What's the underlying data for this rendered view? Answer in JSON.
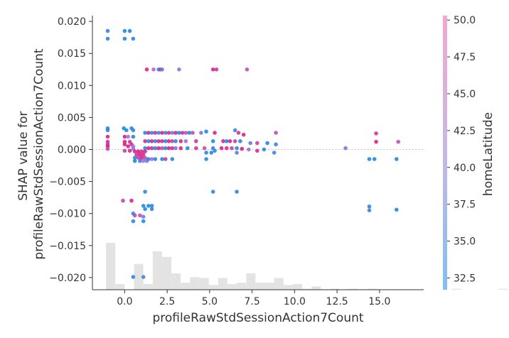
{
  "chart_data": {
    "type": "scatter",
    "xlabel": "profileRawStdSessionAction7Count",
    "ylabel_lines": [
      "SHAP value for",
      "profileRawStdSessionAction7Count"
    ],
    "xlim": [
      -1.9,
      17.6
    ],
    "ylim": [
      -0.0219,
      0.0209
    ],
    "x_ticks": [
      0.0,
      2.5,
      5.0,
      7.5,
      10.0,
      12.5,
      15.0
    ],
    "x_tick_labels": [
      "0.0",
      "2.5",
      "5.0",
      "7.5",
      "10.0",
      "12.5",
      "15.0"
    ],
    "y_ticks": [
      -0.02,
      -0.015,
      -0.01,
      -0.005,
      0.0,
      0.005,
      0.01,
      0.015,
      0.02
    ],
    "y_tick_labels": [
      "−0.020",
      "−0.015",
      "−0.010",
      "−0.005",
      "0.000",
      "0.005",
      "0.010",
      "0.015",
      "0.020"
    ],
    "zero_line": 0.0,
    "colorbar": {
      "label": "homeLatitude",
      "range": [
        31.7,
        50.3
      ],
      "ticks": [
        32.5,
        35.0,
        37.5,
        40.0,
        42.5,
        45.0,
        47.5,
        50.0
      ],
      "tick_labels": [
        "32.5",
        "35.0",
        "37.5",
        "40.0",
        "42.5",
        "45.0",
        "47.5",
        "50.0"
      ],
      "colors": [
        "#7fbff5",
        "#c5b8e8",
        "#f5a6cc"
      ]
    },
    "histogram": {
      "bin_start": -1.1,
      "bin_width": 0.55,
      "counts": [
        1.0,
        0.12,
        0.0,
        0.55,
        0.12,
        0.82,
        0.7,
        0.35,
        0.15,
        0.27,
        0.25,
        0.1,
        0.25,
        0.12,
        0.15,
        0.35,
        0.15,
        0.15,
        0.25,
        0.1,
        0.12,
        0.02,
        0.07,
        0.0,
        0.02,
        0.0,
        0.02,
        0.0,
        0.02,
        0.0,
        0.0,
        0.0,
        0.0,
        0.0,
        0.0,
        0.0,
        0.0,
        0.02,
        0.0,
        0.0,
        0.0,
        0.0,
        0.02,
        0.0,
        0.0,
        0.0,
        0.02,
        0.0,
        0.0,
        0.07,
        0.12,
        0.0,
        0.0,
        0.0,
        0.0,
        0.0,
        0.0,
        0.0,
        0.25,
        0.0
      ]
    },
    "points": [
      {
        "x": -1.0,
        "y": 0.0173,
        "v": 32.0
      },
      {
        "x": -1.0,
        "y": 0.0185,
        "v": 33.5
      },
      {
        "x": 0.0,
        "y": 0.0185,
        "v": 32.0
      },
      {
        "x": 0.3,
        "y": 0.0185,
        "v": 32.0
      },
      {
        "x": 0.5,
        "y": 0.0173,
        "v": 32.0
      },
      {
        "x": 0.0,
        "y": 0.0173,
        "v": 32.0
      },
      {
        "x": -1.0,
        "y": 0.0033,
        "v": 32.0
      },
      {
        "x": -1.0,
        "y": 0.003,
        "v": 33.0
      },
      {
        "x": -1.0,
        "y": 0.002,
        "v": 49.0
      },
      {
        "x": -1.0,
        "y": 0.0012,
        "v": 48.0
      },
      {
        "x": -1.0,
        "y": 0.0008,
        "v": 47.0
      },
      {
        "x": -1.0,
        "y": 0.0005,
        "v": 49.0
      },
      {
        "x": -1.0,
        "y": 0.0001,
        "v": 45.0
      },
      {
        "x": -0.05,
        "y": 0.0033,
        "v": 32.0
      },
      {
        "x": 0.1,
        "y": 0.003,
        "v": 32.0
      },
      {
        "x": 0.4,
        "y": 0.0033,
        "v": 32.0
      },
      {
        "x": 0.5,
        "y": 0.003,
        "v": 33.0
      },
      {
        "x": 0.0,
        "y": 0.002,
        "v": 49.0
      },
      {
        "x": 0.2,
        "y": 0.002,
        "v": 41.0
      },
      {
        "x": 0.5,
        "y": 0.002,
        "v": 32.0
      },
      {
        "x": 0.0,
        "y": 0.0012,
        "v": 49.0
      },
      {
        "x": 0.3,
        "y": 0.0012,
        "v": 47.0
      },
      {
        "x": 0.0,
        "y": 0.0008,
        "v": 49.0
      },
      {
        "x": 0.2,
        "y": 0.0005,
        "v": 49.0
      },
      {
        "x": 0.4,
        "y": 0.0008,
        "v": 48.0
      },
      {
        "x": 0.5,
        "y": 0.0005,
        "v": 40.0
      },
      {
        "x": 0.0,
        "y": -0.0002,
        "v": 46.0
      },
      {
        "x": 0.3,
        "y": -0.0002,
        "v": 48.0
      },
      {
        "x": 0.5,
        "y": 0.0001,
        "v": 39.0
      },
      {
        "x": 0.6,
        "y": -0.0003,
        "v": 49.0
      },
      {
        "x": 0.8,
        "y": -0.0003,
        "v": 49.0
      },
      {
        "x": 1.0,
        "y": -0.0003,
        "v": 48.0
      },
      {
        "x": 1.2,
        "y": -0.0003,
        "v": 49.0
      },
      {
        "x": 0.7,
        "y": -0.0008,
        "v": 47.0
      },
      {
        "x": 0.9,
        "y": -0.0008,
        "v": 49.0
      },
      {
        "x": 1.1,
        "y": -0.0008,
        "v": 48.0
      },
      {
        "x": 0.6,
        "y": -0.0013,
        "v": 32.0
      },
      {
        "x": 0.8,
        "y": -0.0013,
        "v": 46.0
      },
      {
        "x": 1.0,
        "y": -0.0013,
        "v": 49.0
      },
      {
        "x": 1.2,
        "y": -0.0013,
        "v": 45.0
      },
      {
        "x": 0.6,
        "y": -0.0018,
        "v": 32.0
      },
      {
        "x": 0.9,
        "y": -0.0018,
        "v": 32.0
      },
      {
        "x": 1.1,
        "y": -0.0018,
        "v": 41.0
      },
      {
        "x": 1.3,
        "y": -0.0018,
        "v": 38.0
      },
      {
        "x": 1.3,
        "y": 0.0125,
        "v": 49.0
      },
      {
        "x": 1.7,
        "y": 0.0125,
        "v": 42.0
      },
      {
        "x": 2.0,
        "y": 0.0125,
        "v": 32.0
      },
      {
        "x": 2.1,
        "y": 0.0125,
        "v": 47.0
      },
      {
        "x": 2.2,
        "y": 0.0125,
        "v": 36.0
      },
      {
        "x": 3.2,
        "y": 0.0125,
        "v": 39.0
      },
      {
        "x": 5.2,
        "y": 0.0125,
        "v": 49.0
      },
      {
        "x": 5.4,
        "y": 0.0125,
        "v": 47.0
      },
      {
        "x": 7.2,
        "y": 0.0125,
        "v": 44.0
      },
      {
        "x": 1.2,
        "y": 0.0026,
        "v": 32.0
      },
      {
        "x": 1.4,
        "y": 0.0026,
        "v": 49.0
      },
      {
        "x": 1.6,
        "y": 0.0026,
        "v": 32.0
      },
      {
        "x": 1.8,
        "y": 0.0026,
        "v": 48.0
      },
      {
        "x": 2.0,
        "y": 0.0026,
        "v": 34.0
      },
      {
        "x": 2.2,
        "y": 0.0026,
        "v": 49.0
      },
      {
        "x": 2.4,
        "y": 0.0026,
        "v": 33.0
      },
      {
        "x": 2.6,
        "y": 0.0026,
        "v": 48.0
      },
      {
        "x": 2.8,
        "y": 0.0026,
        "v": 37.0
      },
      {
        "x": 3.0,
        "y": 0.0026,
        "v": 49.0
      },
      {
        "x": 3.2,
        "y": 0.0026,
        "v": 32.0
      },
      {
        "x": 3.4,
        "y": 0.0026,
        "v": 48.0
      },
      {
        "x": 3.6,
        "y": 0.0026,
        "v": 44.0
      },
      {
        "x": 3.8,
        "y": 0.0026,
        "v": 32.0
      },
      {
        "x": 4.0,
        "y": 0.0026,
        "v": 45.0
      },
      {
        "x": 4.5,
        "y": 0.0026,
        "v": 38.0
      },
      {
        "x": 4.8,
        "y": 0.0028,
        "v": 32.0
      },
      {
        "x": 5.3,
        "y": 0.0026,
        "v": 49.0
      },
      {
        "x": 6.7,
        "y": 0.0026,
        "v": 47.0
      },
      {
        "x": 6.5,
        "y": 0.003,
        "v": 34.0
      },
      {
        "x": 7.0,
        "y": 0.0023,
        "v": 49.0
      },
      {
        "x": 8.9,
        "y": 0.0026,
        "v": 44.0
      },
      {
        "x": 1.2,
        "y": 0.0013,
        "v": 48.0
      },
      {
        "x": 1.4,
        "y": 0.0013,
        "v": 32.0
      },
      {
        "x": 1.6,
        "y": 0.0013,
        "v": 49.0
      },
      {
        "x": 1.8,
        "y": 0.0013,
        "v": 33.0
      },
      {
        "x": 2.0,
        "y": 0.0013,
        "v": 49.0
      },
      {
        "x": 2.2,
        "y": 0.0013,
        "v": 48.0
      },
      {
        "x": 2.4,
        "y": 0.0013,
        "v": 32.0
      },
      {
        "x": 2.6,
        "y": 0.0013,
        "v": 49.0
      },
      {
        "x": 2.8,
        "y": 0.0013,
        "v": 46.0
      },
      {
        "x": 3.0,
        "y": 0.0013,
        "v": 32.0
      },
      {
        "x": 3.3,
        "y": 0.0013,
        "v": 49.0
      },
      {
        "x": 3.6,
        "y": 0.0013,
        "v": 40.0
      },
      {
        "x": 4.2,
        "y": 0.0013,
        "v": 47.0
      },
      {
        "x": 5.2,
        "y": 0.0013,
        "v": 32.0
      },
      {
        "x": 5.8,
        "y": 0.0013,
        "v": 49.0
      },
      {
        "x": 6.0,
        "y": 0.0013,
        "v": 32.0
      },
      {
        "x": 6.2,
        "y": 0.0013,
        "v": 49.0
      },
      {
        "x": 6.5,
        "y": 0.0013,
        "v": 46.0
      },
      {
        "x": 6.8,
        "y": 0.0013,
        "v": 32.0
      },
      {
        "x": 7.4,
        "y": 0.001,
        "v": 36.0
      },
      {
        "x": 7.8,
        "y": 0.001,
        "v": 46.0
      },
      {
        "x": 8.4,
        "y": 0.001,
        "v": 32.0
      },
      {
        "x": 8.9,
        "y": 0.0008,
        "v": 33.0
      },
      {
        "x": 1.2,
        "y": 0.0002,
        "v": 32.0
      },
      {
        "x": 1.4,
        "y": 0.0002,
        "v": 49.0
      },
      {
        "x": 1.6,
        "y": 0.0002,
        "v": 48.0
      },
      {
        "x": 1.8,
        "y": 0.0002,
        "v": 32.0
      },
      {
        "x": 2.0,
        "y": 0.0002,
        "v": 49.0
      },
      {
        "x": 2.2,
        "y": 0.0002,
        "v": 45.0
      },
      {
        "x": 2.4,
        "y": 0.0002,
        "v": 32.0
      },
      {
        "x": 2.6,
        "y": 0.0002,
        "v": 49.0
      },
      {
        "x": 2.8,
        "y": 0.0002,
        "v": 48.0
      },
      {
        "x": 3.0,
        "y": 0.0002,
        "v": 38.0
      },
      {
        "x": 3.3,
        "y": 0.0002,
        "v": 49.0
      },
      {
        "x": 3.7,
        "y": 0.0002,
        "v": 32.0
      },
      {
        "x": 4.2,
        "y": 0.0002,
        "v": 47.0
      },
      {
        "x": 4.7,
        "y": 0.0002,
        "v": 45.0
      },
      {
        "x": 5.2,
        "y": 0.0002,
        "v": 32.0
      },
      {
        "x": 5.7,
        "y": 0.0002,
        "v": 49.0
      },
      {
        "x": 6.0,
        "y": 0.0002,
        "v": 48.0
      },
      {
        "x": 6.3,
        "y": 0.0002,
        "v": 46.0
      },
      {
        "x": 6.6,
        "y": 0.0002,
        "v": 32.0
      },
      {
        "x": 6.9,
        "y": 0.0001,
        "v": 49.0
      },
      {
        "x": 7.3,
        "y": 0.0,
        "v": 40.0
      },
      {
        "x": 7.8,
        "y": -0.0002,
        "v": 48.0
      },
      {
        "x": 8.2,
        "y": 0.0,
        "v": 32.0
      },
      {
        "x": 8.8,
        "y": -0.0005,
        "v": 34.0
      },
      {
        "x": 4.8,
        "y": -0.0005,
        "v": 32.0
      },
      {
        "x": 5.1,
        "y": -0.0005,
        "v": 32.0
      },
      {
        "x": 5.3,
        "y": -0.0002,
        "v": 33.0
      },
      {
        "x": 6.6,
        "y": -0.0005,
        "v": 36.0
      },
      {
        "x": 1.4,
        "y": -0.0015,
        "v": 32.0
      },
      {
        "x": 1.6,
        "y": -0.0015,
        "v": 40.0
      },
      {
        "x": 1.8,
        "y": -0.0015,
        "v": 33.0
      },
      {
        "x": 2.2,
        "y": -0.0015,
        "v": 32.0
      },
      {
        "x": 2.4,
        "y": -0.0015,
        "v": 47.0
      },
      {
        "x": 2.8,
        "y": -0.0015,
        "v": 32.0
      },
      {
        "x": 4.8,
        "y": -0.0015,
        "v": 32.0
      },
      {
        "x": 13.0,
        "y": 0.0002,
        "v": 38.0
      },
      {
        "x": 14.4,
        "y": -0.0015,
        "v": 32.0
      },
      {
        "x": 14.7,
        "y": -0.0015,
        "v": 32.0
      },
      {
        "x": 14.8,
        "y": 0.0012,
        "v": 49.0
      },
      {
        "x": 14.8,
        "y": 0.0025,
        "v": 47.0
      },
      {
        "x": 16.0,
        "y": -0.0015,
        "v": 32.0
      },
      {
        "x": 16.1,
        "y": 0.0012,
        "v": 44.0
      },
      {
        "x": 1.2,
        "y": -0.0066,
        "v": 33.0
      },
      {
        "x": 5.2,
        "y": -0.0066,
        "v": 32.0
      },
      {
        "x": 6.6,
        "y": -0.0066,
        "v": 32.0
      },
      {
        "x": -0.1,
        "y": -0.008,
        "v": 45.0
      },
      {
        "x": 0.4,
        "y": -0.008,
        "v": 49.0
      },
      {
        "x": 1.1,
        "y": -0.0088,
        "v": 32.0
      },
      {
        "x": 1.4,
        "y": -0.0088,
        "v": 32.0
      },
      {
        "x": 1.6,
        "y": -0.0088,
        "v": 32.0
      },
      {
        "x": 1.2,
        "y": -0.0093,
        "v": 32.0
      },
      {
        "x": 1.6,
        "y": -0.0093,
        "v": 33.0
      },
      {
        "x": 14.4,
        "y": -0.0089,
        "v": 32.0
      },
      {
        "x": 14.4,
        "y": -0.0095,
        "v": 34.0
      },
      {
        "x": 16.0,
        "y": -0.0094,
        "v": 32.0
      },
      {
        "x": 0.5,
        "y": -0.01,
        "v": 32.0
      },
      {
        "x": 0.6,
        "y": -0.0103,
        "v": 45.0
      },
      {
        "x": 0.9,
        "y": -0.0103,
        "v": 44.0
      },
      {
        "x": 1.1,
        "y": -0.0105,
        "v": 38.0
      },
      {
        "x": 0.5,
        "y": -0.0112,
        "v": 33.0
      },
      {
        "x": 1.1,
        "y": -0.0112,
        "v": 32.0
      },
      {
        "x": 0.5,
        "y": -0.0199,
        "v": 33.0
      },
      {
        "x": 1.1,
        "y": -0.0199,
        "v": 34.0
      }
    ]
  }
}
